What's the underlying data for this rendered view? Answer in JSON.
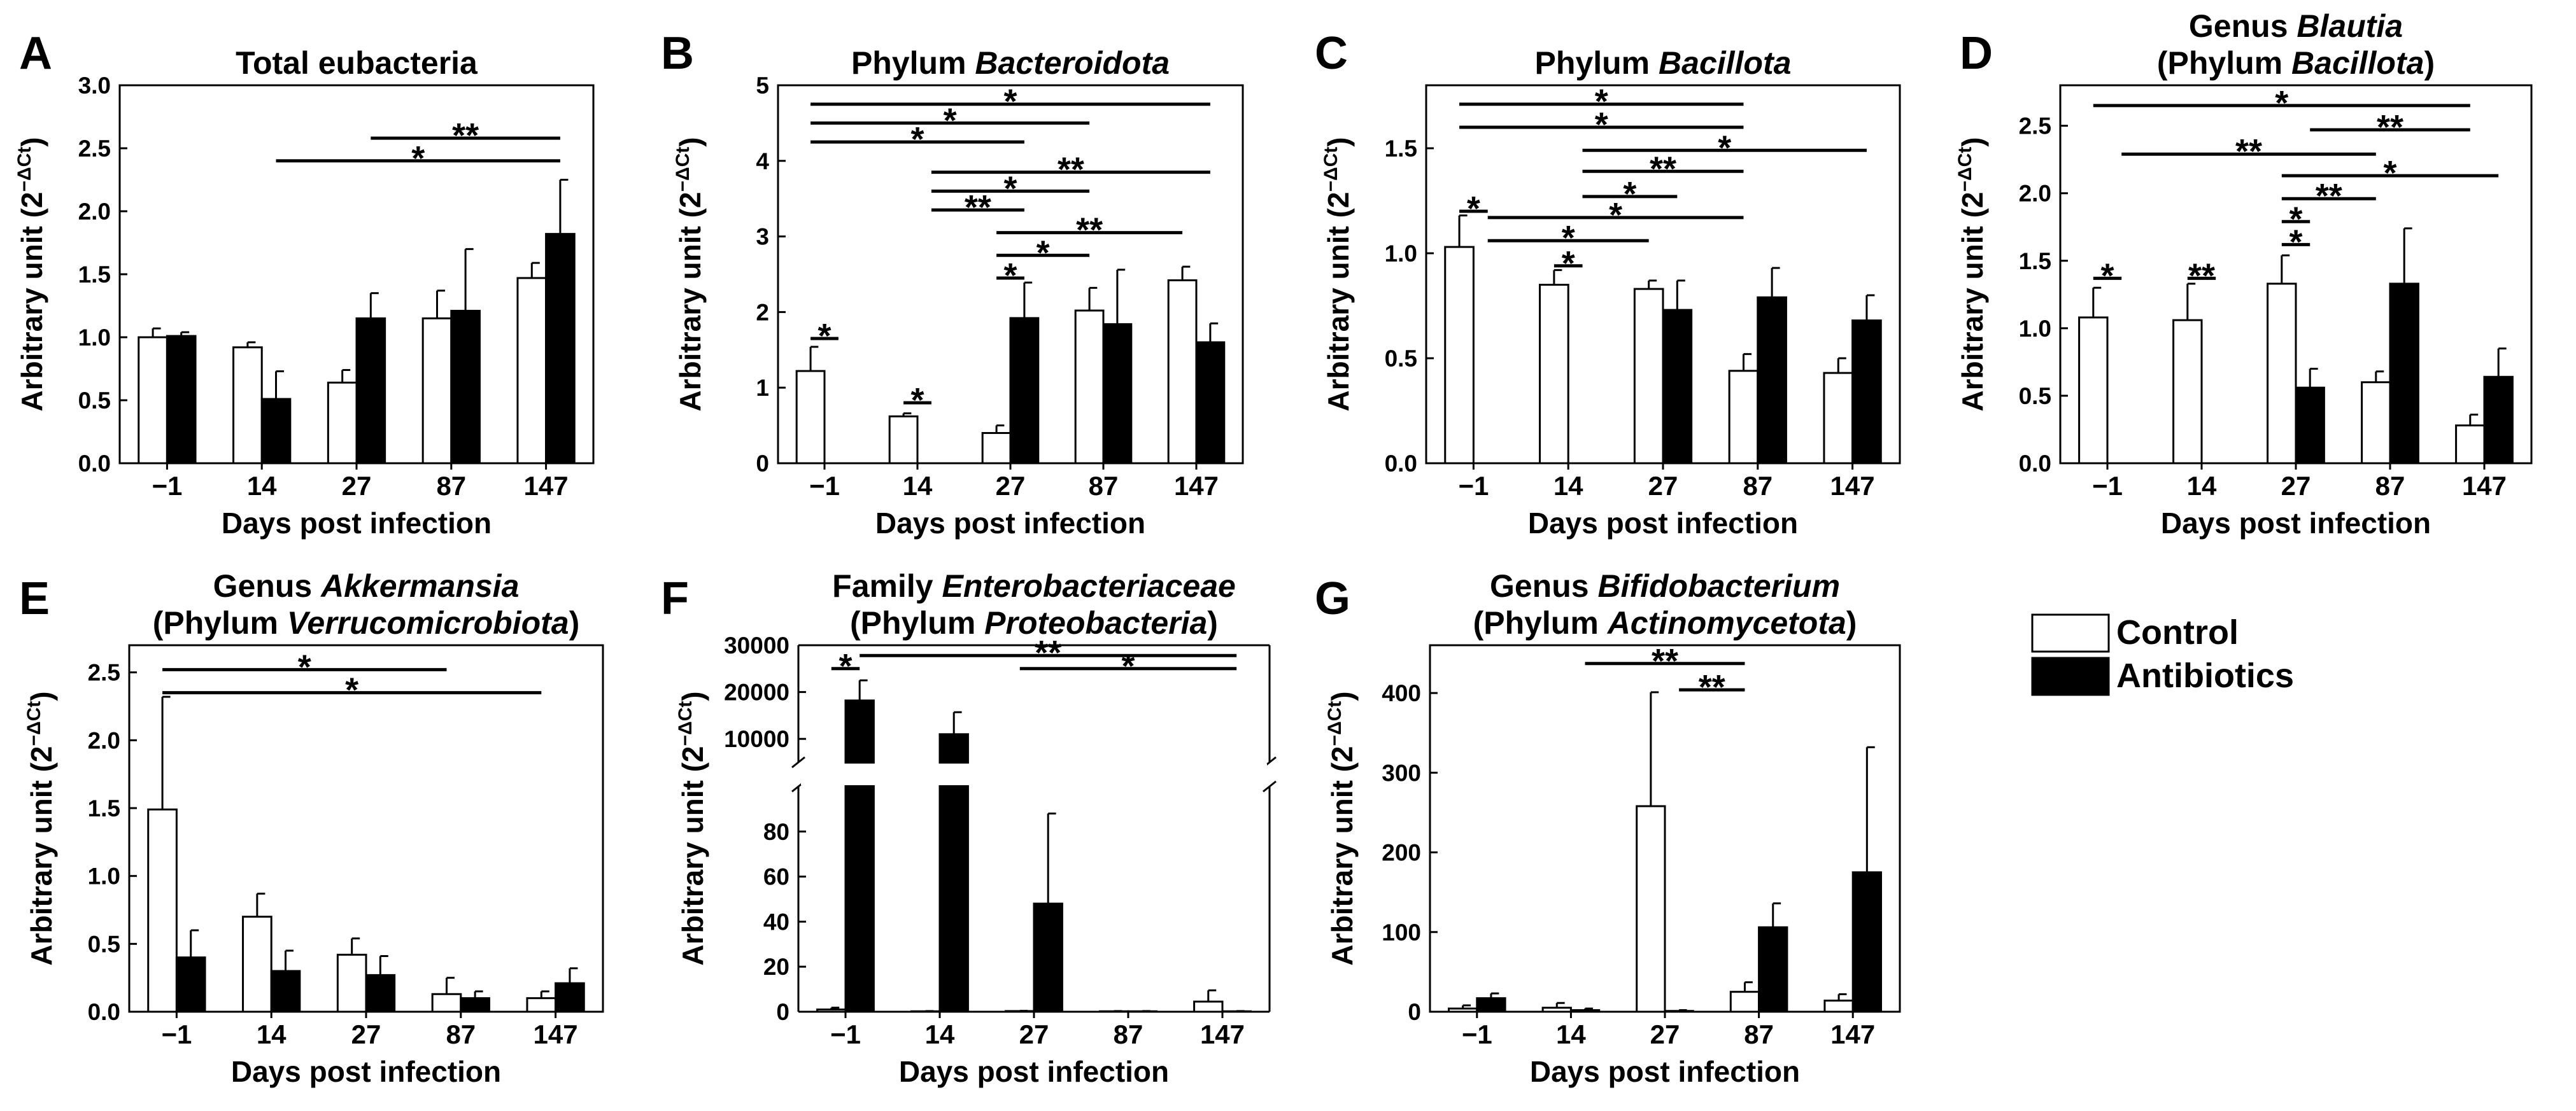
{
  "figure": {
    "background": "#ffffff",
    "colors": {
      "control": "#ffffff",
      "antibiotics": "#000000",
      "stroke": "#000000"
    },
    "legend": [
      {
        "key": "control",
        "label": "Control"
      },
      {
        "key": "antibiotics",
        "label": "Antibiotics"
      }
    ]
  },
  "chart_data": [
    {
      "type": "bar",
      "panel": "A",
      "title": [
        [
          {
            "t": "Total eubacteria"
          }
        ]
      ],
      "xlabel": "Days post infection",
      "ylabel_main": "Arbitrary unit (2",
      "ylabel_sup": "−ΔCt",
      "ylabel_close": ")",
      "categories": [
        "−1",
        "14",
        "27",
        "87",
        "147"
      ],
      "ylim": [
        0,
        3.0
      ],
      "yticks": [
        0,
        0.5,
        1.0,
        1.5,
        2.0,
        2.5,
        3.0
      ],
      "ytick_labels": [
        "0.0",
        "0.5",
        "1.0",
        "1.5",
        "2.0",
        "2.5",
        "3.0"
      ],
      "series": [
        {
          "name": "Control",
          "values": [
            1.0,
            0.92,
            0.64,
            1.15,
            1.47
          ],
          "errors": [
            0.07,
            0.04,
            0.1,
            0.22,
            0.12
          ]
        },
        {
          "name": "Antibiotics",
          "values": [
            1.01,
            0.51,
            1.15,
            1.21,
            1.82
          ],
          "errors": [
            0.03,
            0.22,
            0.2,
            0.49,
            0.43
          ]
        }
      ],
      "significance": [
        {
          "from": 2.5,
          "to": 4.5,
          "y": 2.58,
          "label": "**"
        },
        {
          "from": 1.5,
          "to": 4.5,
          "y": 2.4,
          "label": "*"
        }
      ]
    },
    {
      "type": "bar",
      "panel": "B",
      "title": [
        [
          {
            "t": "Phylum "
          },
          {
            "t": "Bacteroidota",
            "i": true
          }
        ]
      ],
      "xlabel": "Days post infection",
      "ylabel_main": "Arbitrary unit (2",
      "ylabel_sup": "−ΔCt",
      "ylabel_close": ")",
      "categories": [
        "−1",
        "14",
        "27",
        "87",
        "147"
      ],
      "ylim": [
        0,
        5
      ],
      "yticks": [
        0,
        1,
        2,
        3,
        4,
        5
      ],
      "ytick_labels": [
        "0",
        "1",
        "2",
        "3",
        "4",
        "5"
      ],
      "series": [
        {
          "name": "Control",
          "values": [
            1.22,
            0.62,
            0.4,
            2.02,
            2.42
          ],
          "errors": [
            0.32,
            0.04,
            0.1,
            0.3,
            0.18
          ]
        },
        {
          "name": "Antibiotics",
          "values": [
            0.0,
            0.0,
            1.92,
            1.84,
            1.6
          ],
          "errors": [
            0,
            0,
            0.47,
            0.72,
            0.25
          ]
        }
      ],
      "significance": [
        {
          "from": 0,
          "to": 4.5,
          "y": 4.75,
          "label": "*"
        },
        {
          "from": 0,
          "to": 3,
          "y": 4.5,
          "label": "*"
        },
        {
          "from": 0,
          "to": 2.5,
          "y": 4.25,
          "label": "*"
        },
        {
          "from": 1.5,
          "to": 4.5,
          "y": 3.85,
          "label": "**"
        },
        {
          "from": 1.5,
          "to": 3,
          "y": 3.6,
          "label": "*"
        },
        {
          "from": 1.5,
          "to": 2.5,
          "y": 3.35,
          "label": "**"
        },
        {
          "from": 2,
          "to": 4,
          "y": 3.05,
          "label": "**"
        },
        {
          "from": 2,
          "to": 3,
          "y": 2.75,
          "label": "*"
        },
        {
          "from": 2,
          "to": 2.5,
          "y": 2.45,
          "label": "*"
        },
        {
          "from": 0,
          "to": 0.5,
          "y": 1.65,
          "label": "*"
        },
        {
          "from": 1,
          "to": 1.5,
          "y": 0.8,
          "label": "*"
        }
      ]
    },
    {
      "type": "bar",
      "panel": "C",
      "title": [
        [
          {
            "t": "Phylum "
          },
          {
            "t": "Bacillota",
            "i": true
          }
        ]
      ],
      "xlabel": "Days post infection",
      "ylabel_main": "Arbitrary unit (2",
      "ylabel_sup": "−ΔCt",
      "ylabel_close": ")",
      "categories": [
        "−1",
        "14",
        "27",
        "87",
        "147"
      ],
      "ylim": [
        0,
        1.8
      ],
      "yticks": [
        0,
        0.5,
        1.0,
        1.5
      ],
      "ytick_labels": [
        "0.0",
        "0.5",
        "1.0",
        "1.5"
      ],
      "series": [
        {
          "name": "Control",
          "values": [
            1.03,
            0.85,
            0.83,
            0.44,
            0.43
          ],
          "errors": [
            0.15,
            0.07,
            0.04,
            0.08,
            0.07
          ]
        },
        {
          "name": "Antibiotics",
          "values": [
            0.0,
            0.0,
            0.73,
            0.79,
            0.68
          ],
          "errors": [
            0,
            0,
            0.14,
            0.14,
            0.12
          ]
        }
      ],
      "significance": [
        {
          "from": 0,
          "to": 3,
          "y": 1.71,
          "label": "*"
        },
        {
          "from": 0,
          "to": 3,
          "y": 1.6,
          "label": "*"
        },
        {
          "from": 1.5,
          "to": 4.5,
          "y": 1.49,
          "label": "*"
        },
        {
          "from": 1.5,
          "to": 3,
          "y": 1.39,
          "label": "**"
        },
        {
          "from": 1.5,
          "to": 2.5,
          "y": 1.27,
          "label": "*"
        },
        {
          "from": 0.5,
          "to": 3,
          "y": 1.17,
          "label": "*"
        },
        {
          "from": 0,
          "to": 0.5,
          "y": 1.2,
          "label": "*"
        },
        {
          "from": 0.5,
          "to": 2,
          "y": 1.06,
          "label": "*"
        },
        {
          "from": 1,
          "to": 1.5,
          "y": 0.94,
          "label": "*"
        }
      ]
    },
    {
      "type": "bar",
      "panel": "D",
      "title": [
        [
          {
            "t": "Genus "
          },
          {
            "t": "Blautia",
            "i": true
          }
        ],
        [
          {
            "t": "(Phylum "
          },
          {
            "t": "Bacillota",
            "i": true
          },
          {
            "t": ")"
          }
        ]
      ],
      "xlabel": "Days post infection",
      "ylabel_main": "Arbitrary unit (2",
      "ylabel_sup": "−ΔCt",
      "ylabel_close": ")",
      "categories": [
        "−1",
        "14",
        "27",
        "87",
        "147"
      ],
      "ylim": [
        0,
        2.8
      ],
      "yticks": [
        0,
        0.5,
        1.0,
        1.5,
        2.0,
        2.5
      ],
      "ytick_labels": [
        "0.0",
        "0.5",
        "1.0",
        "1.5",
        "2.0",
        "2.5"
      ],
      "series": [
        {
          "name": "Control",
          "values": [
            1.08,
            1.06,
            1.33,
            0.6,
            0.28
          ],
          "errors": [
            0.22,
            0.27,
            0.21,
            0.08,
            0.08
          ]
        },
        {
          "name": "Antibiotics",
          "values": [
            0.0,
            0.0,
            0.56,
            1.33,
            0.64
          ],
          "errors": [
            0,
            0,
            0.14,
            0.41,
            0.21
          ]
        }
      ],
      "significance": [
        {
          "from": 0,
          "to": 4,
          "y": 2.65,
          "label": "*"
        },
        {
          "from": 2.5,
          "to": 4,
          "y": 2.47,
          "label": "**"
        },
        {
          "from": 0.5,
          "to": 3,
          "y": 2.29,
          "label": "**"
        },
        {
          "from": 2,
          "to": 4.5,
          "y": 2.13,
          "label": "*"
        },
        {
          "from": 2,
          "to": 3,
          "y": 1.96,
          "label": "**"
        },
        {
          "from": 2,
          "to": 2.5,
          "y": 1.79,
          "label": "*"
        },
        {
          "from": 2,
          "to": 2.5,
          "y": 1.62,
          "label": "*"
        },
        {
          "from": 0,
          "to": 0.5,
          "y": 1.37,
          "label": "*"
        },
        {
          "from": 1,
          "to": 1.5,
          "y": 1.37,
          "label": "**"
        }
      ]
    },
    {
      "type": "bar",
      "panel": "E",
      "title": [
        [
          {
            "t": "Genus "
          },
          {
            "t": "Akkermansia",
            "i": true
          }
        ],
        [
          {
            "t": "(Phylum "
          },
          {
            "t": "Verrucomicrobiota",
            "i": true
          },
          {
            "t": ")"
          }
        ]
      ],
      "xlabel": "Days post infection",
      "ylabel_main": "Arbitrary unit (2",
      "ylabel_sup": "−ΔCt",
      "ylabel_close": ")",
      "categories": [
        "−1",
        "14",
        "27",
        "87",
        "147"
      ],
      "ylim": [
        0,
        2.7
      ],
      "yticks": [
        0,
        0.5,
        1.0,
        1.5,
        2.0,
        2.5
      ],
      "ytick_labels": [
        "0.0",
        "0.5",
        "1.0",
        "1.5",
        "2.0",
        "2.5"
      ],
      "series": [
        {
          "name": "Control",
          "values": [
            1.49,
            0.7,
            0.42,
            0.13,
            0.1
          ],
          "errors": [
            0.83,
            0.17,
            0.12,
            0.12,
            0.05
          ]
        },
        {
          "name": "Antibiotics",
          "values": [
            0.4,
            0.3,
            0.27,
            0.1,
            0.21
          ],
          "errors": [
            0.2,
            0.15,
            0.14,
            0.05,
            0.11
          ]
        }
      ],
      "significance": [
        {
          "from": 0,
          "to": 3,
          "y": 2.52,
          "label": "*"
        },
        {
          "from": 0,
          "to": 4,
          "y": 2.35,
          "label": "*"
        }
      ]
    },
    {
      "type": "bar",
      "panel": "F",
      "broken_axis": true,
      "title": [
        [
          {
            "t": "Family "
          },
          {
            "t": "Enterobacteriaceae",
            "i": true
          }
        ],
        [
          {
            "t": "(Phylum "
          },
          {
            "t": "Proteobacteria",
            "i": true
          },
          {
            "t": ")"
          }
        ]
      ],
      "xlabel": "Days post infection",
      "ylabel_main": "Arbitrary unit (2",
      "ylabel_sup": "−ΔCt",
      "ylabel_close": ")",
      "categories": [
        "−1",
        "14",
        "27",
        "87",
        "147"
      ],
      "ylim_lower": [
        0,
        100
      ],
      "yticks_lower": [
        0,
        20,
        40,
        60,
        80
      ],
      "ytick_labels_lower": [
        "0",
        "20",
        "40",
        "60",
        "80"
      ],
      "ylim_upper": [
        5000,
        30000
      ],
      "yticks_upper": [
        10000,
        20000,
        30000
      ],
      "ytick_labels_upper": [
        "10000",
        "20000",
        "30000"
      ],
      "series": [
        {
          "name": "Control",
          "values": [
            1.0,
            0.2,
            0.3,
            0.2,
            4.5
          ],
          "errors": [
            0.8,
            0.1,
            0.1,
            0.1,
            5.0
          ]
        },
        {
          "name": "Antibiotics",
          "values": [
            18200,
            11000,
            48,
            0.2,
            0.2
          ],
          "errors": [
            4300,
            4700,
            40,
            0.1,
            0.1
          ]
        }
      ],
      "significance": [
        {
          "from": 0.5,
          "to": 4.5,
          "y": 27800,
          "label": "**"
        },
        {
          "from": 2,
          "to": 4.5,
          "y": 25000,
          "label": "*"
        },
        {
          "from": 0,
          "to": 0.5,
          "y": 25000,
          "label": "*"
        }
      ]
    },
    {
      "type": "bar",
      "panel": "G",
      "title": [
        [
          {
            "t": "Genus "
          },
          {
            "t": "Bifidobacterium",
            "i": true
          }
        ],
        [
          {
            "t": "(Phylum "
          },
          {
            "t": "Actinomycetota",
            "i": true
          },
          {
            "t": ")"
          }
        ]
      ],
      "xlabel": "Days post infection",
      "ylabel_main": "Arbitrary unit (2",
      "ylabel_sup": "−ΔCt",
      "ylabel_close": ")",
      "categories": [
        "−1",
        "14",
        "27",
        "87",
        "147"
      ],
      "ylim": [
        0,
        460
      ],
      "yticks": [
        0,
        100,
        200,
        300,
        400
      ],
      "ytick_labels": [
        "0",
        "100",
        "200",
        "300",
        "400"
      ],
      "series": [
        {
          "name": "Control",
          "values": [
            4,
            5,
            258,
            25,
            14
          ],
          "errors": [
            4,
            6,
            143,
            12,
            8
          ]
        },
        {
          "name": "Antibiotics",
          "values": [
            17,
            2,
            1,
            106,
            175
          ],
          "errors": [
            6,
            2,
            1,
            30,
            157
          ]
        }
      ],
      "significance": [
        {
          "from": 1.5,
          "to": 3,
          "y": 437,
          "label": "**"
        },
        {
          "from": 2.5,
          "to": 3,
          "y": 404,
          "label": "**"
        }
      ]
    }
  ]
}
